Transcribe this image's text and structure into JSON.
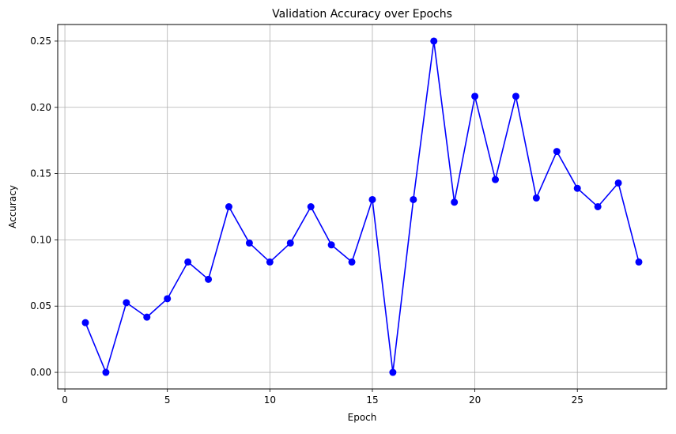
{
  "chart_data": {
    "type": "line",
    "title": "Validation Accuracy over Epochs",
    "xlabel": "Epoch",
    "ylabel": "Accuracy",
    "xlim": [
      -0.35,
      29.35
    ],
    "ylim": [
      -0.0125,
      0.2625
    ],
    "xticks": [
      0,
      5,
      10,
      15,
      20,
      25
    ],
    "xtick_labels": [
      "0",
      "5",
      "10",
      "15",
      "20",
      "25"
    ],
    "yticks": [
      0.0,
      0.05,
      0.1,
      0.15,
      0.2,
      0.25
    ],
    "ytick_labels": [
      "0.00",
      "0.05",
      "0.10",
      "0.15",
      "0.20",
      "0.25"
    ],
    "grid": true,
    "series": [
      {
        "color": "#0000ff",
        "marker": "circle",
        "x": [
          1,
          2,
          3,
          4,
          5,
          6,
          7,
          8,
          9,
          10,
          11,
          12,
          13,
          14,
          15,
          16,
          17,
          18,
          19,
          20,
          21,
          22,
          23,
          24,
          25,
          26,
          27,
          28
        ],
        "y": [
          0.0375,
          0.0,
          0.0526,
          0.0417,
          0.0556,
          0.0833,
          0.0702,
          0.125,
          0.0976,
          0.0833,
          0.0976,
          0.125,
          0.0962,
          0.0833,
          0.1304,
          0.0,
          0.1304,
          0.25,
          0.1284,
          0.2083,
          0.1455,
          0.2083,
          0.1316,
          0.1667,
          0.1389,
          0.125,
          0.1429,
          0.0833
        ]
      }
    ]
  }
}
